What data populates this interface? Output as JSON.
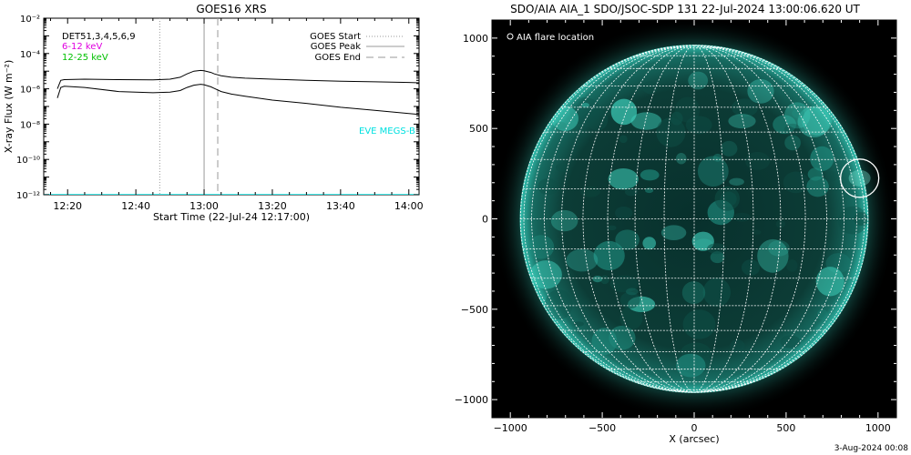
{
  "chart_data": [
    {
      "type": "line",
      "title": "GOES16 XRS",
      "xlabel": "Start Time (22-Jul-24 12:17:00)",
      "ylabel": "X-ray Flux (W m⁻²)",
      "yscale": "log",
      "ylim": [
        1e-12,
        0.01
      ],
      "xlim": [
        "12:13",
        "14:03"
      ],
      "x_ticks": [
        "12:20",
        "12:40",
        "13:00",
        "13:20",
        "13:40",
        "14:00"
      ],
      "y_ticks": [
        "10⁻¹²",
        "10⁻¹⁰",
        "10⁻⁸",
        "10⁻⁶",
        "10⁻⁴",
        "10⁻²"
      ],
      "grid": false,
      "legend_placement": "top-right",
      "legend": [
        {
          "label": "GOES Start",
          "style": "dotted",
          "color": "#999999"
        },
        {
          "label": "GOES Peak",
          "style": "solid",
          "color": "#999999"
        },
        {
          "label": "GOES End",
          "style": "dashed",
          "color": "#999999"
        }
      ],
      "channel_labels": [
        {
          "text": "DET51,3,4,5,6,9",
          "color": "#000000"
        },
        {
          "text": "6-12 keV",
          "color": "#e000e0"
        },
        {
          "text": "12-25 keV",
          "color": "#00c000"
        }
      ],
      "annotation": {
        "text": "EVE MEGS-B",
        "color": "#00e0e0"
      },
      "event_times": {
        "start": "12:47",
        "peak": "13:00",
        "end": "13:04"
      },
      "series": [
        {
          "color": "#000000",
          "x": [
            "12:17",
            "12:18",
            "12:19",
            "12:25",
            "12:35",
            "12:45",
            "12:50",
            "12:53",
            "12:55",
            "12:57",
            "12:59",
            "13:00",
            "13:02",
            "13:03",
            "13:05",
            "13:08",
            "13:12",
            "13:20",
            "13:30",
            "13:40",
            "13:50",
            "14:00",
            "14:03"
          ],
          "y": [
            3e-07,
            1.2e-06,
            1.4e-06,
            1.2e-06,
            7e-07,
            6e-07,
            6.5e-07,
            8e-07,
            1.2e-06,
            1.6e-06,
            1.8e-06,
            1.7e-06,
            1.3e-06,
            1.05e-06,
            7e-07,
            5e-07,
            3.8e-07,
            2.3e-07,
            1.5e-07,
            9e-08,
            6e-08,
            4e-08,
            3.5e-08
          ]
        },
        {
          "color": "#000000",
          "x": [
            "12:17",
            "12:18",
            "12:19",
            "12:25",
            "12:35",
            "12:45",
            "12:50",
            "12:53",
            "12:55",
            "12:57",
            "12:59",
            "13:00",
            "13:02",
            "13:03",
            "13:05",
            "13:08",
            "13:12",
            "13:20",
            "13:30",
            "13:40",
            "13:50",
            "14:00",
            "14:03"
          ],
          "y": [
            1e-06,
            3e-06,
            3.3e-06,
            3.5e-06,
            3.3e-06,
            3.2e-06,
            3.5e-06,
            4.5e-06,
            7e-06,
            1e-05,
            1.1e-05,
            1.05e-05,
            8.5e-06,
            7e-06,
            5.5e-06,
            4.5e-06,
            4e-06,
            3.5e-06,
            3e-06,
            2.7e-06,
            2.5e-06,
            2.3e-06,
            2.2e-06
          ]
        },
        {
          "color": "#00e0e0",
          "x": [
            "12:13",
            "14:03"
          ],
          "y": [
            1e-12,
            1e-12
          ]
        }
      ]
    },
    {
      "type": "image",
      "title": "SDO/AIA AIA_1 SDO/JSOC-SDP 131 22-Jul-2024 13:00:06.620 UT",
      "xlabel": "X (arcsec)",
      "ylabel": "",
      "xlim": [
        -1100,
        1100
      ],
      "ylim": [
        -1100,
        1100
      ],
      "x_ticks": [
        -1000,
        -500,
        0,
        500,
        1000
      ],
      "y_ticks": [
        -1000,
        -500,
        0,
        500,
        1000
      ],
      "grid": false,
      "legend": [
        {
          "label": "AIA flare location",
          "marker": "open-circle"
        }
      ],
      "solar_radius_arcsec": 945,
      "flare_location": {
        "x": 900,
        "y": 225
      },
      "colors": {
        "background": "#000000",
        "disk": "#0a3430",
        "limb": "#36d6c4",
        "grid": "#ffffff"
      }
    }
  ],
  "footer": {
    "timestamp": "3-Aug-2024 00:08"
  }
}
